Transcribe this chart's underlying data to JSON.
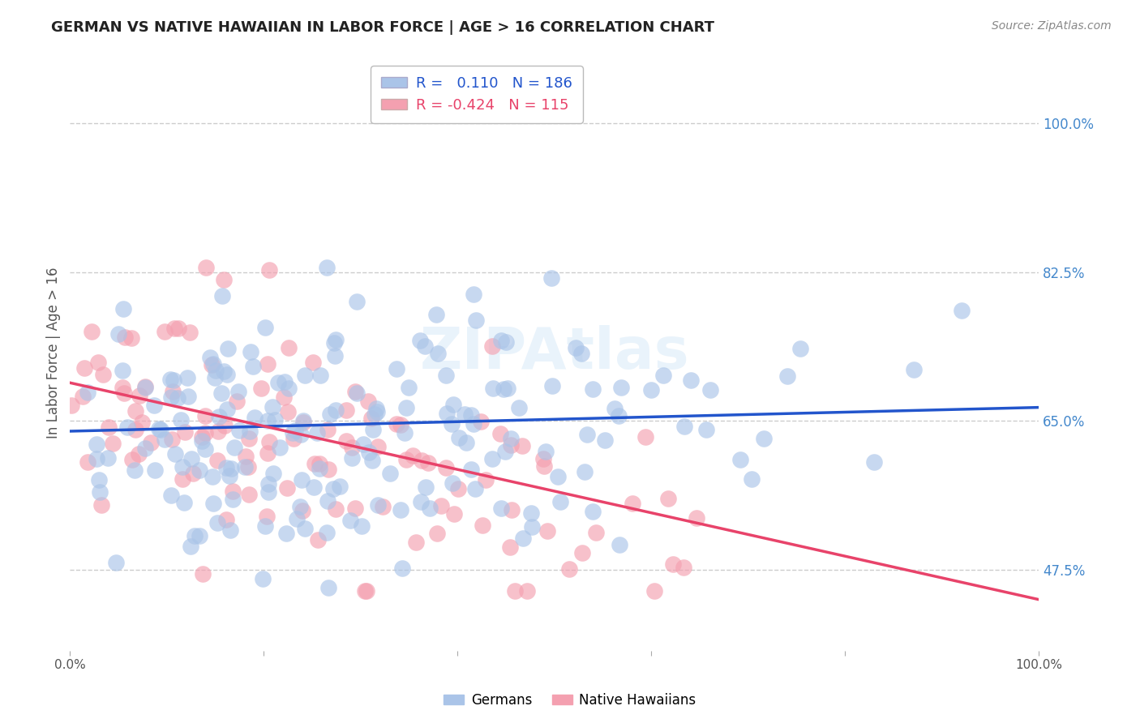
{
  "title": "GERMAN VS NATIVE HAWAIIAN IN LABOR FORCE | AGE > 16 CORRELATION CHART",
  "source": "Source: ZipAtlas.com",
  "xlabel": "",
  "ylabel": "In Labor Force | Age > 16",
  "xlim": [
    0.0,
    1.0
  ],
  "ylim": [
    0.38,
    1.08
  ],
  "ytick_labels_right": [
    "47.5%",
    "65.0%",
    "82.5%",
    "100.0%"
  ],
  "ytick_positions_right": [
    0.475,
    0.65,
    0.825,
    1.0
  ],
  "grid_color": "#cccccc",
  "background_color": "#ffffff",
  "german_color": "#aac4e8",
  "native_hawaiian_color": "#f4a0b0",
  "german_line_color": "#2255cc",
  "native_hawaiian_line_color": "#e8436a",
  "german_R": 0.11,
  "german_N": 186,
  "native_R": -0.424,
  "native_N": 115,
  "german_intercept": 0.638,
  "german_slope": 0.028,
  "native_intercept": 0.695,
  "native_slope": -0.255,
  "title_color": "#222222",
  "right_tick_color": "#4488cc",
  "seed": 42
}
